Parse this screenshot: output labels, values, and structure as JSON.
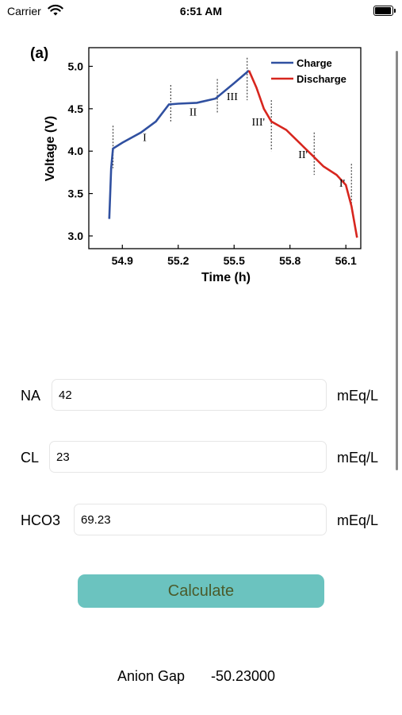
{
  "status_bar": {
    "carrier": "Carrier",
    "time": "6:51 AM"
  },
  "figure": {
    "panel_label": "(a)",
    "ylabel": "Voltage (V)",
    "xlabel": "Time (h)",
    "y_ticks": [
      "3.0",
      "3.5",
      "4.0",
      "4.5",
      "5.0"
    ],
    "x_ticks": [
      "54.9",
      "55.2",
      "55.5",
      "55.8",
      "56.1"
    ],
    "legend": [
      "Charge",
      "Discharge"
    ],
    "stage_labels": [
      "I",
      "II",
      "III",
      "III'",
      "II'",
      "I'"
    ],
    "colors": {
      "charge": "#3050a0",
      "discharge": "#d7261e"
    }
  },
  "chart_data": {
    "type": "line",
    "title": "",
    "xlabel": "Time (h)",
    "ylabel": "Voltage (V)",
    "xlim": [
      54.72,
      56.18
    ],
    "ylim": [
      2.85,
      5.22
    ],
    "series": [
      {
        "name": "Charge",
        "x": [
          54.83,
          54.835,
          54.84,
          54.85,
          54.9,
          55.0,
          55.08,
          55.15,
          55.2,
          55.3,
          55.4,
          55.5,
          55.58
        ],
        "y": [
          3.2,
          3.5,
          3.8,
          4.03,
          4.1,
          4.22,
          4.35,
          4.55,
          4.56,
          4.57,
          4.62,
          4.8,
          4.95
        ]
      },
      {
        "name": "Discharge",
        "x": [
          55.58,
          55.62,
          55.66,
          55.7,
          55.78,
          55.85,
          55.92,
          55.98,
          56.05,
          56.1,
          56.13,
          56.16
        ],
        "y": [
          4.95,
          4.75,
          4.5,
          4.35,
          4.25,
          4.1,
          3.95,
          3.82,
          3.72,
          3.6,
          3.35,
          2.98
        ]
      }
    ],
    "grid": false,
    "legend_position": "top-right"
  },
  "form": {
    "na": {
      "label": "NA",
      "value": "42",
      "unit": "mEq/L"
    },
    "cl": {
      "label": "CL",
      "value": "23",
      "unit": "mEq/L"
    },
    "hco3": {
      "label": "HCO3",
      "value": "69.23",
      "unit": "mEq/L"
    }
  },
  "calculate_label": "Calculate",
  "result": {
    "label": "Anion Gap",
    "value": "-50.23000"
  }
}
